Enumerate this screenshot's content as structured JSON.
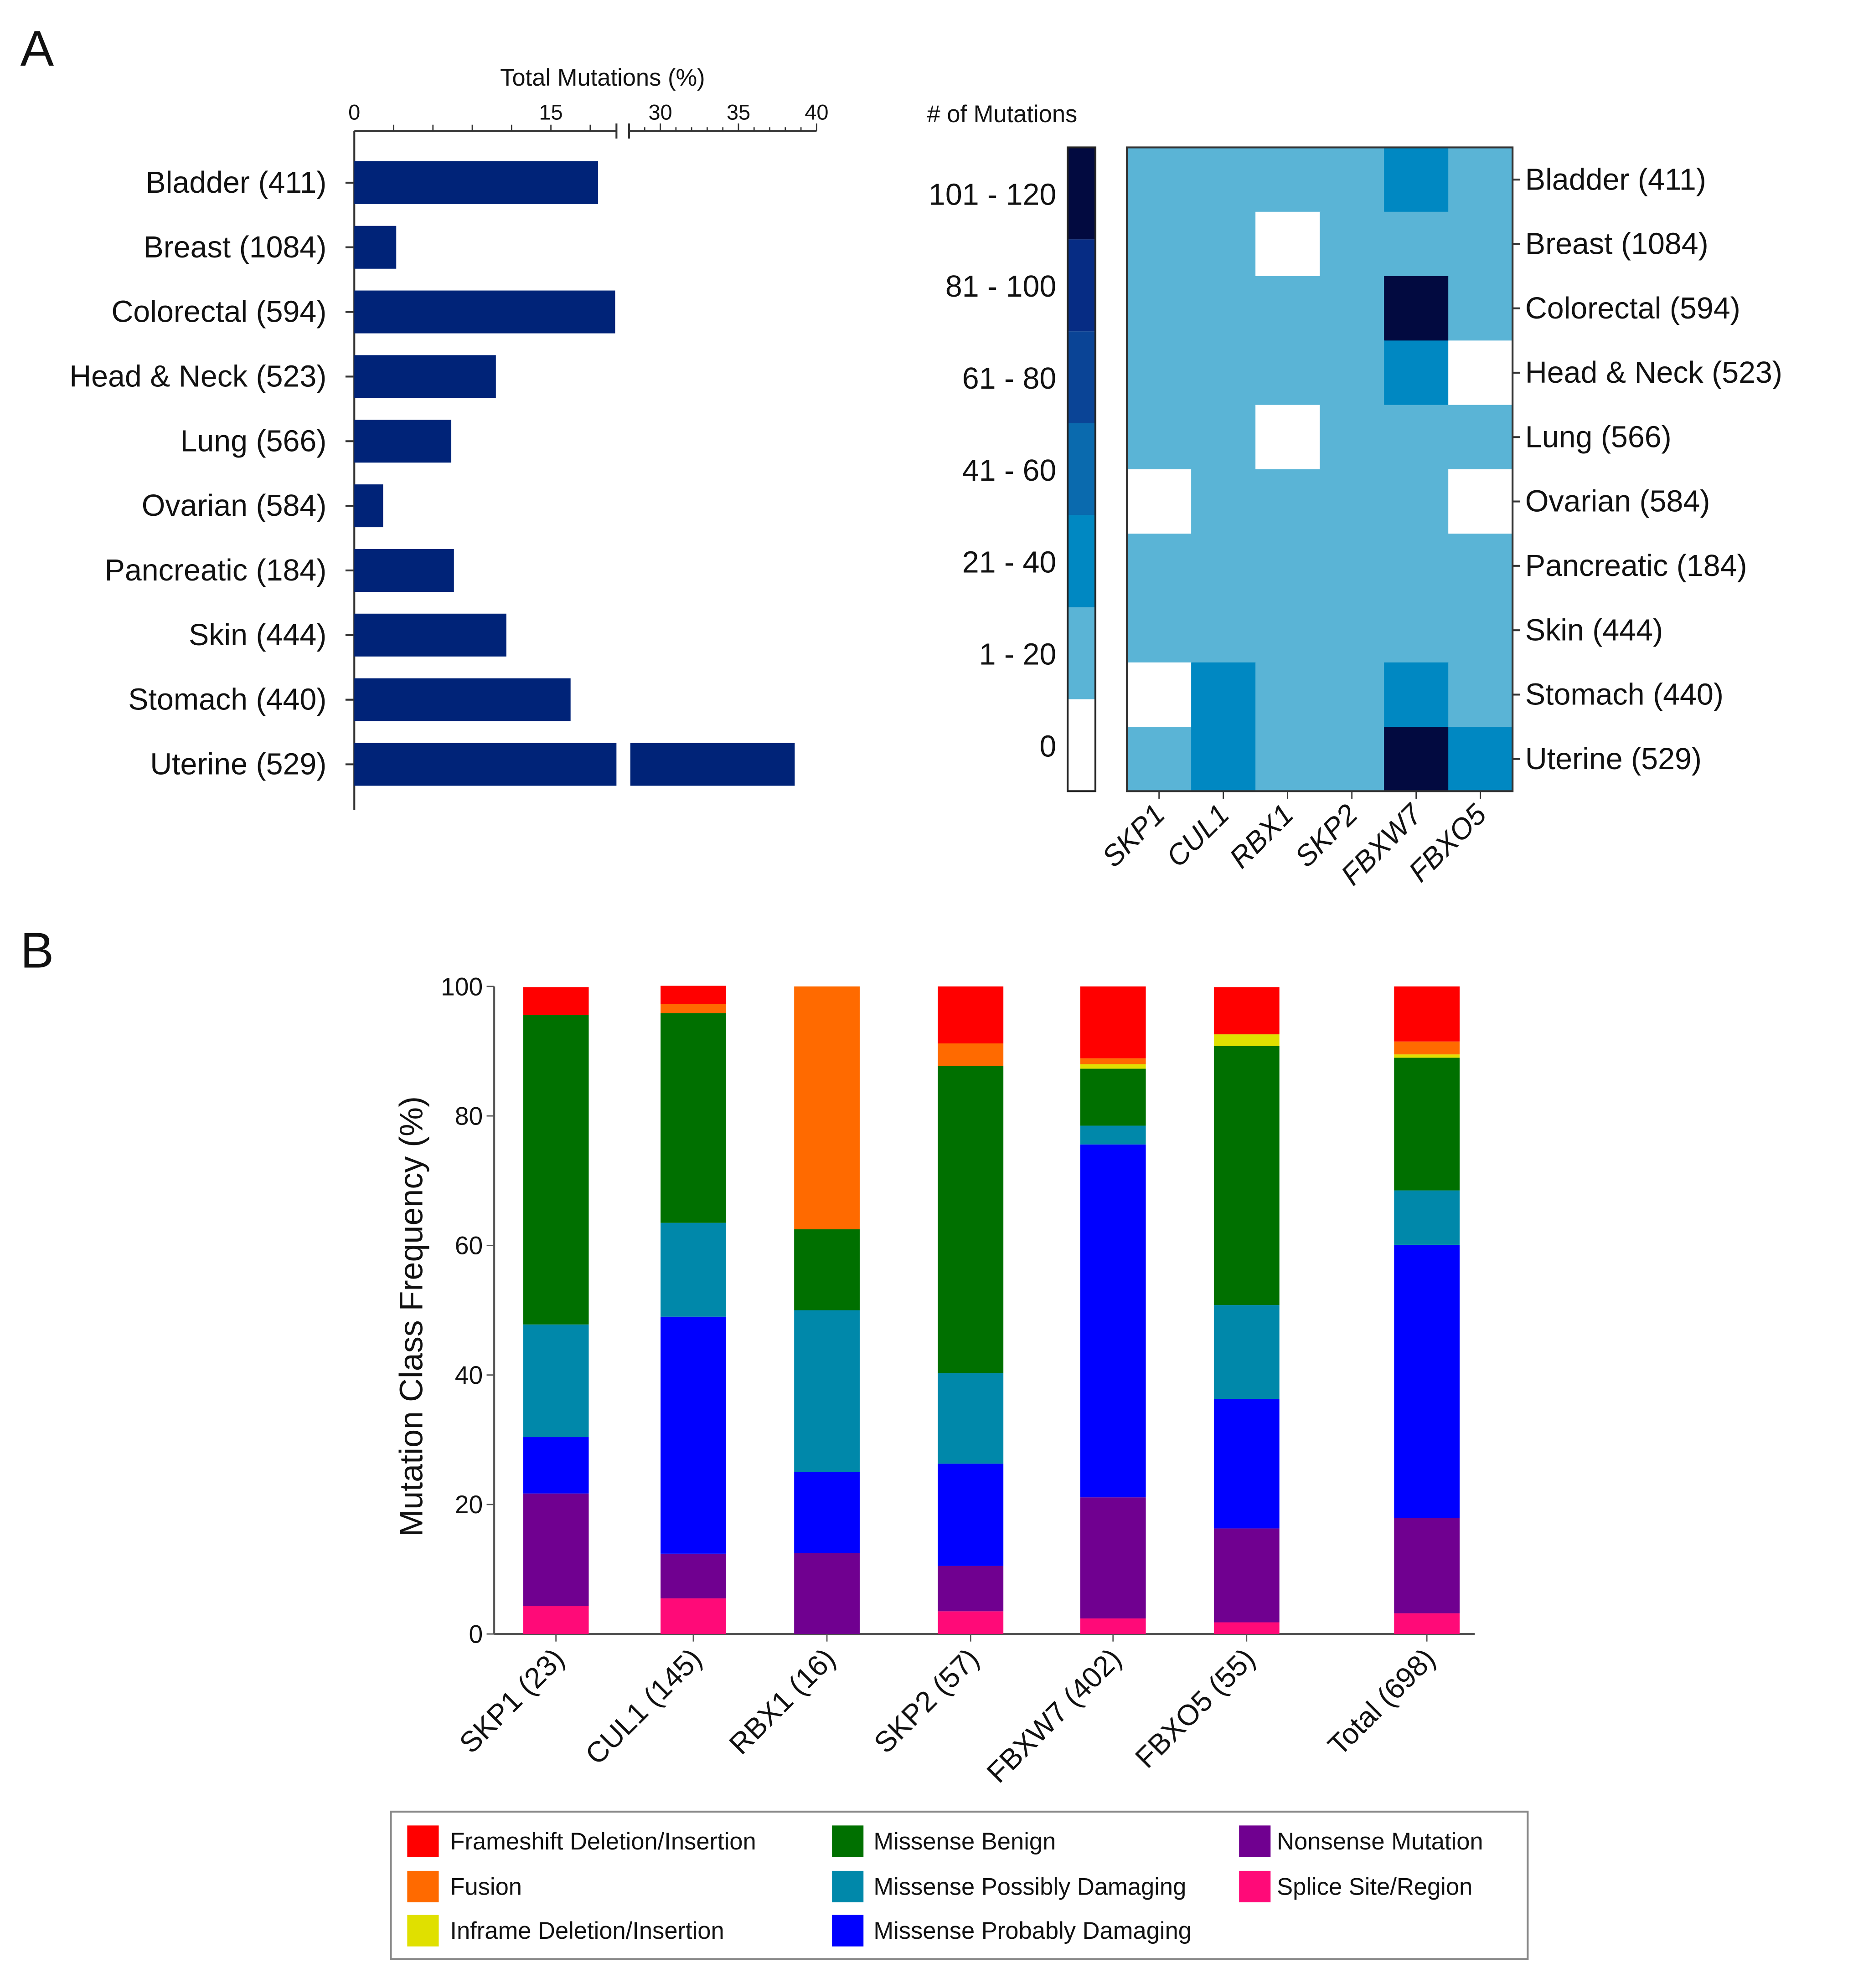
{
  "panels": {
    "a": "A",
    "b": "B"
  },
  "chart_data": [
    {
      "type": "bar",
      "orientation": "horizontal",
      "title": "Total Mutations (%)",
      "categories": [
        "Bladder (411)",
        "Breast (1084)",
        "Colorectal (594)",
        "Head & Neck (523)",
        "Lung (566)",
        "Ovarian (584)",
        "Pancreatic (184)",
        "Skin (444)",
        "Stomach (440)",
        "Uterine (529)"
      ],
      "values": [
        18.6,
        3.2,
        19.9,
        10.8,
        7.4,
        2.2,
        7.6,
        11.6,
        16.5,
        38.6
      ],
      "axis_break": [
        20,
        28
      ],
      "xlim": [
        0,
        40
      ],
      "tick_labels": [
        "0",
        "15",
        "30",
        "35",
        "40"
      ],
      "tick_values": [
        0,
        15,
        30,
        35,
        40
      ],
      "bar_color": "#002378"
    },
    {
      "type": "heatmap",
      "legend_title": "# of Mutations",
      "bins": [
        "0",
        "1 - 20",
        "21 - 40",
        "41 - 60",
        "61 - 80",
        "81 - 100",
        "101 - 120"
      ],
      "bin_colors": [
        "#ffffff",
        "#5ab4d6",
        "#0088c2",
        "#0a6aae",
        "#0a4496",
        "#062c84",
        "#020a40"
      ],
      "columns": [
        "SKP1",
        "CUL1",
        "RBX1",
        "SKP2",
        "FBXW7",
        "FBXO5"
      ],
      "rows": [
        "Bladder (411)",
        "Breast (1084)",
        "Colorectal (594)",
        "Head & Neck (523)",
        "Lung (566)",
        "Ovarian (584)",
        "Pancreatic (184)",
        "Skin (444)",
        "Stomach (440)",
        "Uterine (529)"
      ],
      "bin_index_matrix": [
        [
          1,
          1,
          1,
          1,
          2,
          1
        ],
        [
          1,
          1,
          0,
          1,
          1,
          1
        ],
        [
          1,
          1,
          1,
          1,
          6,
          1
        ],
        [
          1,
          1,
          1,
          1,
          2,
          0
        ],
        [
          1,
          1,
          0,
          1,
          1,
          1
        ],
        [
          0,
          1,
          1,
          1,
          1,
          0
        ],
        [
          1,
          1,
          1,
          1,
          1,
          1
        ],
        [
          1,
          1,
          1,
          1,
          1,
          1
        ],
        [
          0,
          2,
          1,
          1,
          2,
          1
        ],
        [
          1,
          2,
          1,
          1,
          6,
          2
        ]
      ]
    },
    {
      "type": "bar",
      "stacked": true,
      "ylabel": "Mutation Class Frequency (%)",
      "ylim": [
        0,
        100
      ],
      "yticks": [
        "0",
        "20",
        "40",
        "60",
        "80",
        "100"
      ],
      "categories": [
        "SKP1 (23)",
        "CUL1 (145)",
        "RBX1 (16)",
        "SKP2 (57)",
        "FBXW7 (402)",
        "FBXO5 (55)",
        "Total (698)"
      ],
      "series": [
        {
          "name": "Splice Site/Region",
          "color": "#ff0a78",
          "values": [
            4.3,
            5.5,
            0,
            3.5,
            2.4,
            1.8,
            3.2
          ]
        },
        {
          "name": "Nonsense Mutation",
          "color": "#700090",
          "values": [
            17.4,
            6.9,
            12.5,
            7.0,
            18.7,
            14.5,
            14.7
          ]
        },
        {
          "name": "Missense Probably Damaging",
          "color": "#0000ff",
          "values": [
            8.7,
            36.6,
            12.5,
            15.8,
            54.5,
            20.0,
            42.2
          ]
        },
        {
          "name": "Missense Possibly Damaging",
          "color": "#0088aa",
          "values": [
            17.4,
            14.5,
            25.0,
            14.0,
            2.9,
            14.5,
            8.4
          ]
        },
        {
          "name": "Missense Benign",
          "color": "#007000",
          "values": [
            47.8,
            32.4,
            12.5,
            47.4,
            8.8,
            40.0,
            20.5
          ]
        },
        {
          "name": "Inframe Deletion/Insertion",
          "color": "#e0e000",
          "values": [
            0,
            0,
            0,
            0,
            0.7,
            1.8,
            0.5
          ]
        },
        {
          "name": "Fusion",
          "color": "#ff6a00",
          "values": [
            0,
            1.4,
            37.5,
            3.5,
            0.9,
            0,
            2.0
          ]
        },
        {
          "name": "Frameshift Deletion/Insertion",
          "color": "#ff0000",
          "values": [
            4.3,
            2.8,
            0,
            8.8,
            11.1,
            7.3,
            8.5
          ]
        }
      ],
      "legend_order": [
        "Frameshift Deletion/Insertion",
        "Fusion",
        "Inframe Deletion/Insertion",
        "Missense Benign",
        "Missense Possibly Damaging",
        "Missense Probably Damaging",
        "Nonsense Mutation",
        "Splice Site/Region"
      ],
      "legend_placement": "bottom"
    }
  ]
}
